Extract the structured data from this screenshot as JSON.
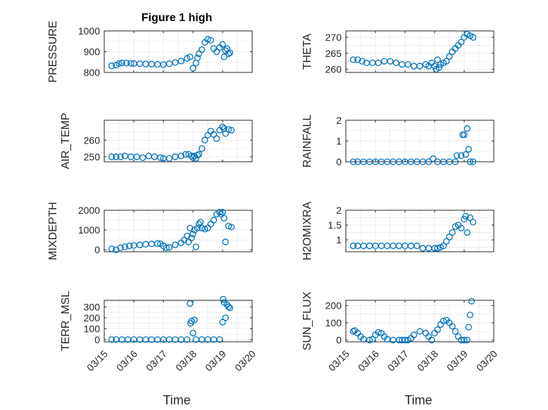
{
  "figure": {
    "title": "Figure 1 high",
    "xlabel": "Time",
    "marker_color": "#0072BD"
  },
  "chart_data": [
    {
      "type": "scatter",
      "id": "pressure",
      "ylabel": "PRESSURE",
      "ylim": [
        800,
        1000
      ],
      "yticks": [
        800,
        900,
        1000
      ],
      "xlim": [
        0,
        5
      ],
      "grid": true,
      "xticklabels": [
        "03/15",
        "03/16",
        "03/17",
        "03/18",
        "03/19",
        "03/20"
      ],
      "x": [
        0.25,
        0.4,
        0.5,
        0.6,
        0.75,
        0.9,
        1.0,
        1.2,
        1.4,
        1.6,
        1.8,
        2.0,
        2.2,
        2.4,
        2.6,
        2.8,
        2.9,
        3.0,
        3.1,
        3.15,
        3.2,
        3.3,
        3.4,
        3.5,
        3.6,
        3.7,
        3.8,
        3.9,
        4.0,
        4.05,
        4.1,
        4.15,
        4.2,
        4.25
      ],
      "y": [
        832,
        835,
        843,
        846,
        845,
        844,
        843,
        842,
        841,
        840,
        839,
        838,
        842,
        848,
        855,
        868,
        875,
        820,
        845,
        870,
        890,
        910,
        945,
        960,
        955,
        915,
        900,
        920,
        935,
        875,
        905,
        915,
        890,
        895
      ]
    },
    {
      "type": "scatter",
      "id": "theta",
      "ylabel": "THETA",
      "ylim": [
        259,
        272
      ],
      "yticks": [
        260,
        265,
        270
      ],
      "xlim": [
        0,
        5
      ],
      "grid": true,
      "xticklabels": [
        "03/15",
        "03/16",
        "03/17",
        "03/18",
        "03/19",
        "03/20"
      ],
      "x": [
        0.25,
        0.4,
        0.55,
        0.7,
        0.9,
        1.1,
        1.3,
        1.5,
        1.7,
        1.9,
        2.1,
        2.3,
        2.5,
        2.7,
        2.8,
        2.9,
        3.0,
        3.05,
        3.1,
        3.15,
        3.2,
        3.3,
        3.4,
        3.5,
        3.6,
        3.7,
        3.8,
        3.9,
        4.0,
        4.1,
        4.2,
        4.3
      ],
      "y": [
        263,
        263,
        262.5,
        262,
        262,
        262,
        262.5,
        262.5,
        262,
        261.5,
        261.5,
        261,
        261,
        261.5,
        261,
        262,
        261,
        260,
        263,
        260.5,
        261.5,
        262,
        262.5,
        264,
        265.5,
        266.5,
        267.5,
        268.5,
        270,
        271,
        270.5,
        270
      ]
    },
    {
      "type": "scatter",
      "id": "air_temp",
      "ylabel": "AIR_TEMP",
      "ylim": [
        247,
        272
      ],
      "yticks": [
        250,
        260
      ],
      "xlim": [
        0,
        5
      ],
      "grid": true,
      "xticklabels": [
        "03/15",
        "03/16",
        "03/17",
        "03/18",
        "03/19",
        "03/20"
      ],
      "x": [
        0.25,
        0.4,
        0.55,
        0.7,
        0.9,
        1.1,
        1.3,
        1.5,
        1.7,
        1.9,
        2.0,
        2.2,
        2.4,
        2.6,
        2.75,
        2.85,
        2.95,
        3.0,
        3.05,
        3.1,
        3.15,
        3.2,
        3.3,
        3.4,
        3.5,
        3.6,
        3.7,
        3.8,
        3.9,
        4.0,
        4.05,
        4.1,
        4.2,
        4.3
      ],
      "y": [
        250,
        250,
        250,
        250.5,
        250,
        250,
        249.5,
        250.5,
        250,
        249.5,
        249,
        249,
        250,
        250.5,
        251.5,
        251.5,
        250.5,
        249.5,
        250.5,
        249,
        251,
        251.5,
        255,
        260,
        263,
        265.5,
        263.5,
        261,
        266,
        268,
        267,
        264,
        266.5,
        266
      ]
    },
    {
      "type": "scatter",
      "id": "rainfall",
      "ylabel": "RAINFALL",
      "ylim": [
        0,
        2
      ],
      "yticks": [
        0,
        1,
        2
      ],
      "xlim": [
        0,
        5
      ],
      "grid": true,
      "xticklabels": [
        "03/15",
        "03/16",
        "03/17",
        "03/18",
        "03/19",
        "03/20"
      ],
      "x": [
        0.25,
        0.4,
        0.6,
        0.8,
        1.0,
        1.2,
        1.4,
        1.6,
        1.8,
        2.0,
        2.2,
        2.4,
        2.6,
        2.8,
        2.95,
        3.1,
        3.3,
        3.5,
        3.7,
        3.75,
        3.9,
        3.95,
        4.0,
        4.05,
        4.1,
        4.15,
        4.2,
        4.3
      ],
      "y": [
        0,
        0,
        0,
        0,
        0,
        0,
        0,
        0,
        0,
        0,
        0,
        0,
        0,
        0,
        0.15,
        0,
        0,
        0,
        0,
        0.3,
        0.3,
        1.3,
        1.3,
        0.35,
        1.6,
        0.6,
        0,
        0
      ]
    },
    {
      "type": "scatter",
      "id": "mixdepth",
      "ylabel": "MIXDEPTH",
      "ylim": [
        -100,
        2000
      ],
      "yticks": [
        0,
        1000,
        2000
      ],
      "xlim": [
        0,
        5
      ],
      "grid": true,
      "xticklabels": [
        "03/15",
        "03/16",
        "03/17",
        "03/18",
        "03/19",
        "03/20"
      ],
      "x": [
        0.25,
        0.4,
        0.55,
        0.7,
        0.85,
        1.0,
        1.2,
        1.4,
        1.6,
        1.8,
        1.9,
        2.0,
        2.1,
        2.2,
        2.4,
        2.6,
        2.7,
        2.8,
        2.85,
        2.9,
        2.95,
        3.0,
        3.05,
        3.1,
        3.15,
        3.2,
        3.25,
        3.3,
        3.4,
        3.5,
        3.6,
        3.7,
        3.8,
        3.9,
        3.95,
        4.0,
        4.05,
        4.1,
        4.2,
        4.3
      ],
      "y": [
        50,
        0,
        100,
        150,
        200,
        220,
        250,
        280,
        300,
        320,
        300,
        200,
        100,
        120,
        250,
        350,
        500,
        700,
        400,
        1100,
        600,
        800,
        1000,
        150,
        1100,
        1300,
        1400,
        1100,
        1050,
        1100,
        1300,
        1500,
        1800,
        1900,
        1800,
        1900,
        1600,
        400,
        1200,
        1150
      ]
    },
    {
      "type": "scatter",
      "id": "h2omixra",
      "ylabel": "H2OMIXRA",
      "ylim": [
        0.6,
        2
      ],
      "yticks": [
        1,
        1.5,
        2
      ],
      "xlim": [
        0,
        5
      ],
      "grid": true,
      "xticklabels": [
        "03/15",
        "03/16",
        "03/17",
        "03/18",
        "03/19",
        "03/20"
      ],
      "x": [
        0.25,
        0.4,
        0.6,
        0.8,
        1.0,
        1.2,
        1.4,
        1.6,
        1.8,
        2.0,
        2.2,
        2.4,
        2.6,
        2.8,
        3.0,
        3.1,
        3.2,
        3.3,
        3.4,
        3.5,
        3.6,
        3.7,
        3.8,
        3.9,
        4.0,
        4.05,
        4.1,
        4.2,
        4.3
      ],
      "y": [
        0.8,
        0.8,
        0.8,
        0.8,
        0.8,
        0.8,
        0.8,
        0.8,
        0.8,
        0.8,
        0.8,
        0.8,
        0.72,
        0.72,
        0.72,
        0.72,
        0.75,
        0.8,
        0.95,
        1.1,
        1.25,
        1.45,
        1.5,
        1.4,
        1.7,
        1.8,
        1.25,
        1.75,
        1.6
      ]
    },
    {
      "type": "scatter",
      "id": "terr_msl",
      "ylabel": "TERR_MSL",
      "ylim": [
        -20,
        360
      ],
      "yticks": [
        0,
        100,
        200,
        300
      ],
      "xlim": [
        0,
        5
      ],
      "grid": true,
      "xticklabels": [
        "03/15",
        "03/16",
        "03/17",
        "03/18",
        "03/19",
        "03/20"
      ],
      "x": [
        0.25,
        0.4,
        0.6,
        0.8,
        1.0,
        1.2,
        1.4,
        1.6,
        1.8,
        2.0,
        2.2,
        2.4,
        2.6,
        2.8,
        2.9,
        2.92,
        2.95,
        3.0,
        3.05,
        3.1,
        3.3,
        3.5,
        3.7,
        3.9,
        4.0,
        4.02,
        4.05,
        4.1,
        4.15,
        4.2,
        4.25
      ],
      "y": [
        0,
        0,
        0,
        0,
        0,
        0,
        0,
        0,
        0,
        0,
        0,
        0,
        0,
        0,
        330,
        150,
        170,
        60,
        180,
        0,
        0,
        0,
        0,
        0,
        160,
        370,
        340,
        200,
        320,
        300,
        290
      ]
    },
    {
      "type": "scatter",
      "id": "sun_flux",
      "ylabel": "SUN_FLUX",
      "ylim": [
        -10,
        230
      ],
      "yticks": [
        0,
        100,
        200
      ],
      "xlim": [
        0,
        5
      ],
      "grid": true,
      "xticklabels": [
        "03/15",
        "03/16",
        "03/17",
        "03/18",
        "03/19",
        "03/20"
      ],
      "x": [
        0.25,
        0.3,
        0.4,
        0.5,
        0.6,
        0.8,
        0.9,
        1.0,
        1.1,
        1.2,
        1.3,
        1.4,
        1.6,
        1.8,
        1.9,
        2.0,
        2.1,
        2.2,
        2.3,
        2.5,
        2.7,
        2.8,
        2.9,
        3.0,
        3.1,
        3.2,
        3.3,
        3.4,
        3.5,
        3.6,
        3.7,
        3.8,
        3.9,
        4.0,
        4.1,
        4.15,
        4.2,
        4.25
      ],
      "y": [
        50,
        55,
        40,
        20,
        5,
        0,
        5,
        30,
        45,
        40,
        20,
        5,
        0,
        0,
        0,
        0,
        0,
        10,
        30,
        50,
        40,
        20,
        0,
        40,
        60,
        90,
        110,
        115,
        100,
        80,
        50,
        20,
        0,
        0,
        0,
        75,
        145,
        225
      ]
    }
  ]
}
